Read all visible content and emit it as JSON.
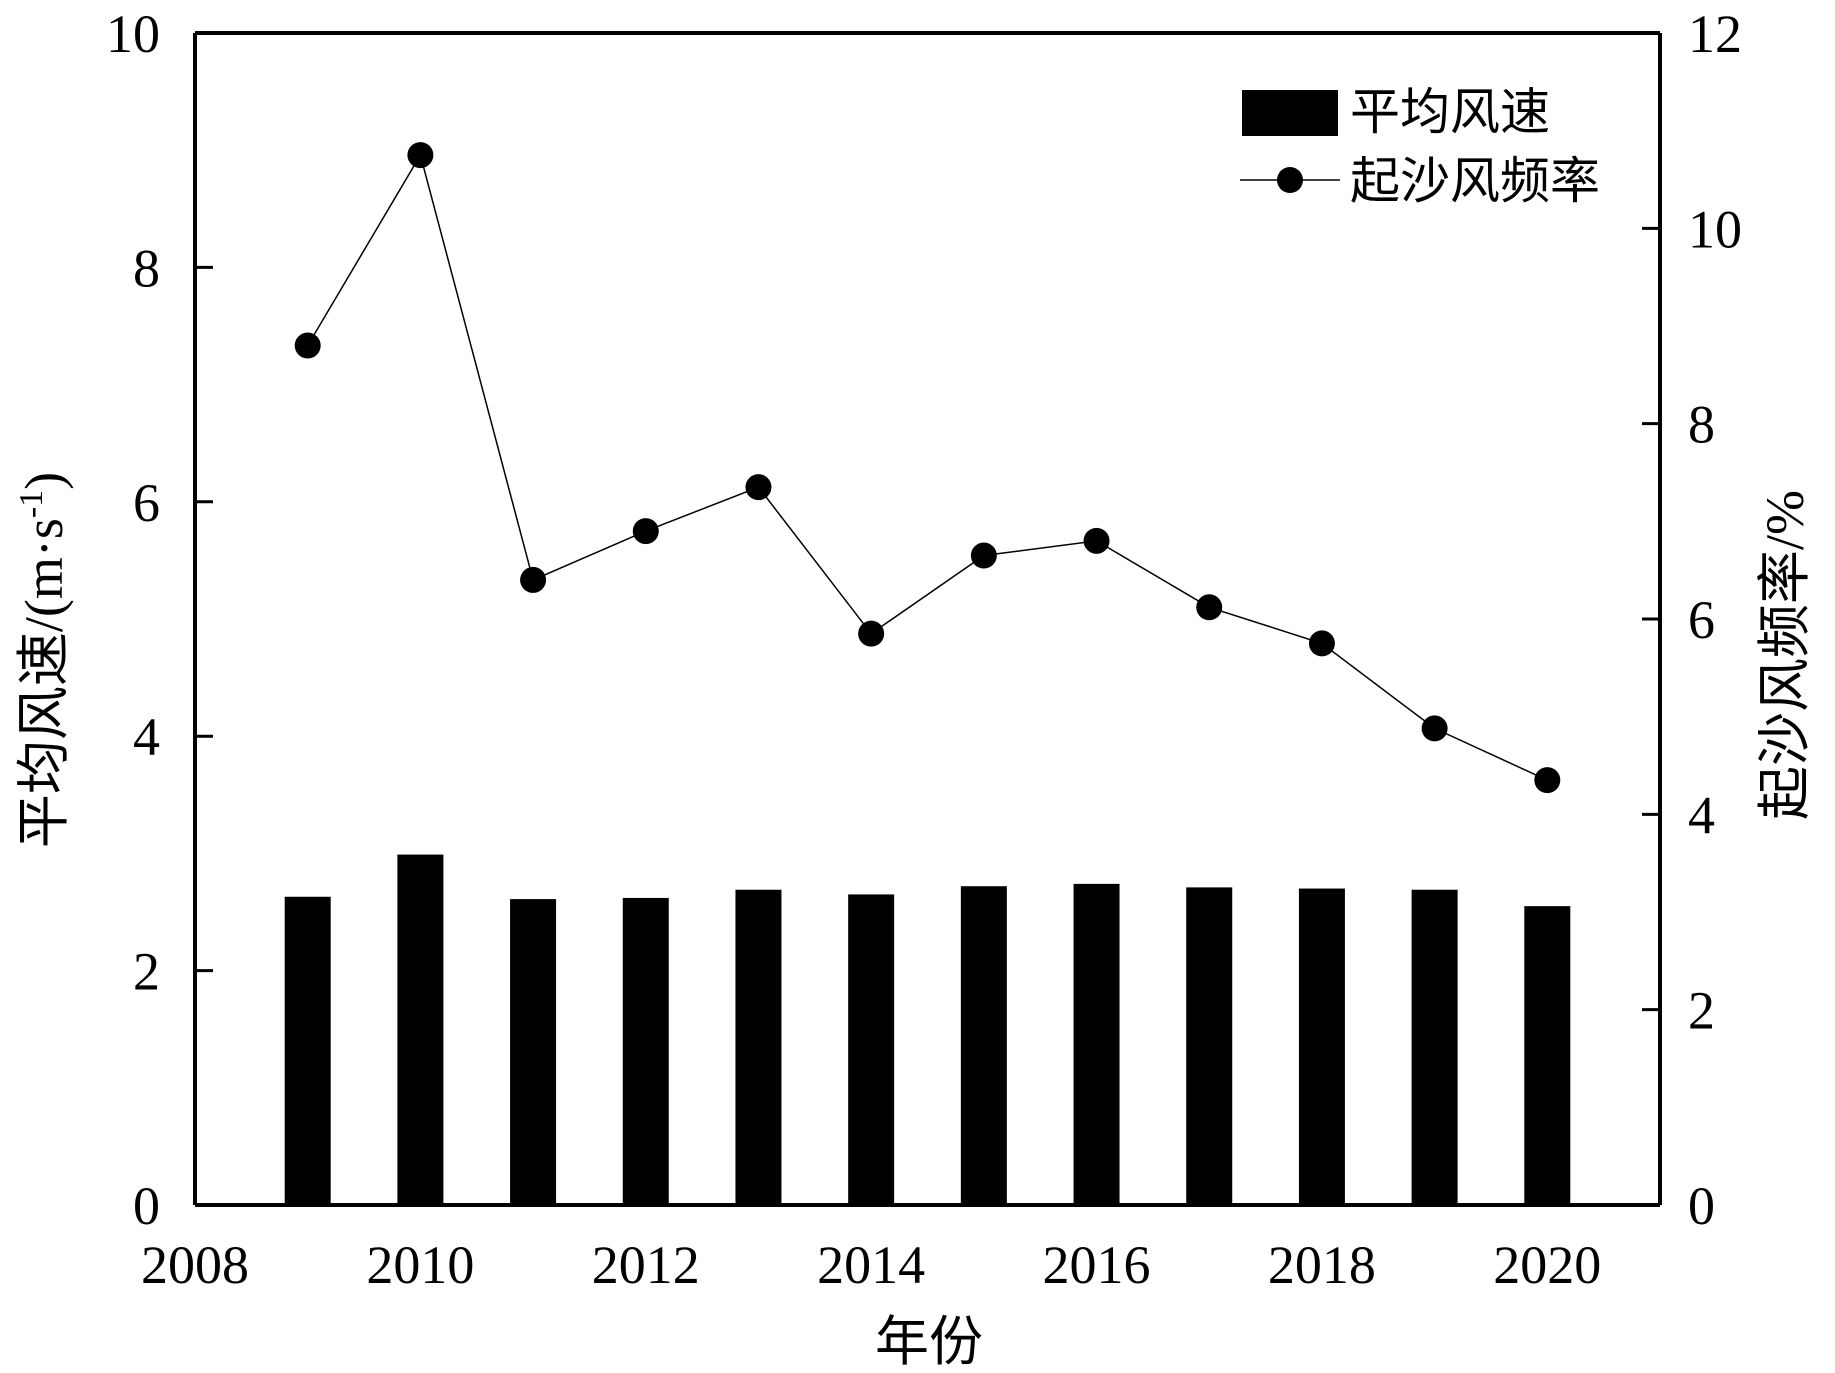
{
  "chart_data": {
    "type": "bar",
    "xlabel": "年份",
    "ylabel_left": "平均风速/(m·s",
    "ylabel_left_sup": "-1",
    "ylabel_left_close": ")",
    "ylabel_right": "起沙风频率/%",
    "xlim": [
      2008,
      2021
    ],
    "ylim_left": [
      0,
      10
    ],
    "ylim_right": [
      0,
      12
    ],
    "xticks": [
      2008,
      2010,
      2012,
      2014,
      2016,
      2018,
      2020
    ],
    "yticks_left": [
      0,
      2,
      4,
      6,
      8,
      10
    ],
    "yticks_right": [
      0,
      2,
      4,
      6,
      8,
      10,
      12
    ],
    "grid": false,
    "legend_position": "top-right",
    "x": [
      2009,
      2010,
      2011,
      2012,
      2013,
      2014,
      2015,
      2016,
      2017,
      2018,
      2019,
      2020
    ],
    "series": [
      {
        "name": "平均风速",
        "kind": "bar",
        "axis": "left",
        "color": "#000000",
        "values": [
          2.63,
          2.99,
          2.61,
          2.62,
          2.69,
          2.65,
          2.72,
          2.74,
          2.71,
          2.7,
          2.69,
          2.55
        ]
      },
      {
        "name": "起沙风频率",
        "kind": "line",
        "axis": "right",
        "color": "#000000",
        "marker": "circle",
        "values": [
          8.8,
          10.75,
          6.4,
          6.9,
          7.35,
          5.85,
          6.65,
          6.8,
          6.12,
          5.75,
          4.88,
          4.35
        ]
      }
    ]
  }
}
